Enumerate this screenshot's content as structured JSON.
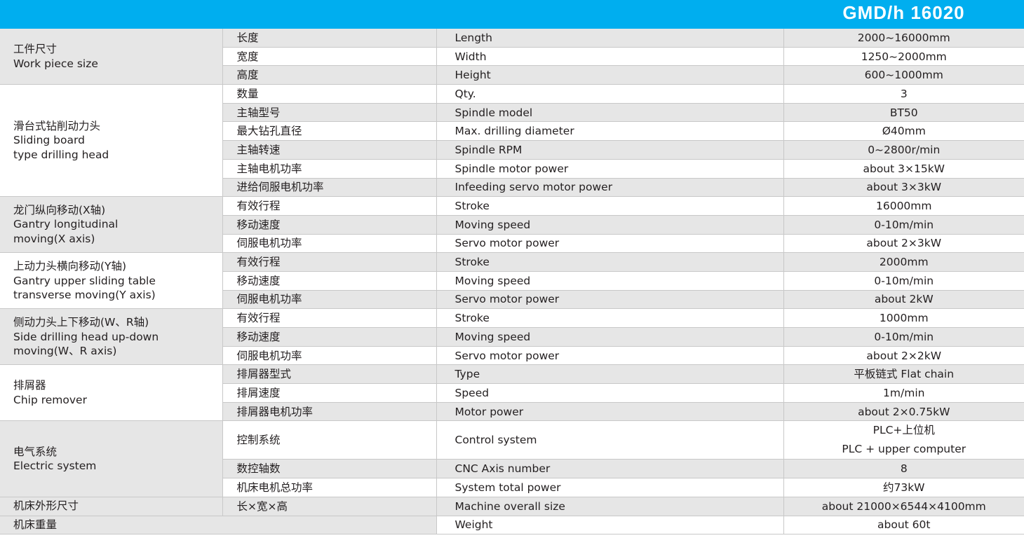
{
  "header": {
    "title": "GMD/h 16020",
    "color": "#00AEEF"
  },
  "groups": [
    {
      "zh": "工件尺寸",
      "en": [
        "Work piece size"
      ],
      "rows": [
        {
          "zh": "长度",
          "en": "Length",
          "value": "2000~16000mm"
        },
        {
          "zh": "宽度",
          "en": "Width",
          "value": "1250~2000mm"
        },
        {
          "zh": "高度",
          "en": "Height",
          "value": "600~1000mm"
        }
      ]
    },
    {
      "zh": "滑台式钻削动力头",
      "en": [
        "Sliding board",
        "type drilling head"
      ],
      "rows": [
        {
          "zh": "数量",
          "en": "Qty.",
          "value": "3"
        },
        {
          "zh": "主轴型号",
          "en": "Spindle model",
          "value": "BT50"
        },
        {
          "zh": "最大钻孔直径",
          "en": "Max. drilling diameter",
          "value": "Ø40mm"
        },
        {
          "zh": "主轴转速",
          "en": "Spindle RPM",
          "value": "0~2800r/min"
        },
        {
          "zh": "主轴电机功率",
          "en": "Spindle motor power",
          "value": "about 3×15kW"
        },
        {
          "zh": "进给伺服电机功率",
          "en": "Infeeding servo motor power",
          "value": "about 3×3kW"
        }
      ]
    },
    {
      "zh": "龙门纵向移动(X轴)",
      "en": [
        "Gantry longitudinal",
        "moving(X axis)"
      ],
      "rows": [
        {
          "zh": "有效行程",
          "en": "Stroke",
          "value": "16000mm"
        },
        {
          "zh": "移动速度",
          "en": "Moving speed",
          "value": "0-10m/min"
        },
        {
          "zh": "伺服电机功率",
          "en": "Servo motor power",
          "value": "about 2×3kW"
        }
      ]
    },
    {
      "zh": "上动力头横向移动(Y轴)",
      "en": [
        "Gantry upper sliding table",
        "transverse moving(Y axis)"
      ],
      "rows": [
        {
          "zh": "有效行程",
          "en": "Stroke",
          "value": "2000mm"
        },
        {
          "zh": "移动速度",
          "en": "Moving speed",
          "value": "0-10m/min"
        },
        {
          "zh": "伺服电机功率",
          "en": "Servo motor power",
          "value": "about 2kW"
        }
      ]
    },
    {
      "zh": "侧动力头上下移动(W、R轴)",
      "en": [
        "Side drilling head up-down",
        "moving(W、R axis)"
      ],
      "rows": [
        {
          "zh": "有效行程",
          "en": "Stroke",
          "value": "1000mm"
        },
        {
          "zh": "移动速度",
          "en": "Moving speed",
          "value": "0-10m/min"
        },
        {
          "zh": "伺服电机功率",
          "en": "Servo motor power",
          "value": "about 2×2kW"
        }
      ]
    },
    {
      "zh": "排屑器",
      "en": [
        "Chip remover"
      ],
      "rows": [
        {
          "zh": "排屑器型式",
          "en": "Type",
          "value": "平板链式 Flat chain"
        },
        {
          "zh": "排屑速度",
          "en": "Speed",
          "value": "1m/min"
        },
        {
          "zh": "排屑器电机功率",
          "en": "Motor power",
          "value": "about 2×0.75kW"
        }
      ]
    },
    {
      "zh": "电气系统",
      "en": [
        "Electric system"
      ],
      "rows": [
        {
          "zh": "控制系统",
          "en": "Control system",
          "value": "PLC+上位机",
          "value2": "PLC + upper computer"
        },
        {
          "zh": "数控轴数",
          "en": "CNC Axis number",
          "value": "8"
        },
        {
          "zh": "机床电机总功率",
          "en": "System total power",
          "value": "约73kW"
        }
      ]
    },
    {
      "zh": "机床外形尺寸",
      "en": [],
      "rows": [
        {
          "zh": "长×宽×高",
          "en": "Machine overall size",
          "value": "about 21000×6544×4100mm"
        }
      ]
    },
    {
      "zh": "机床重量",
      "en": [],
      "span": true,
      "rows": [
        {
          "zh": "",
          "en": "Weight",
          "value": "about 60t"
        }
      ]
    }
  ]
}
